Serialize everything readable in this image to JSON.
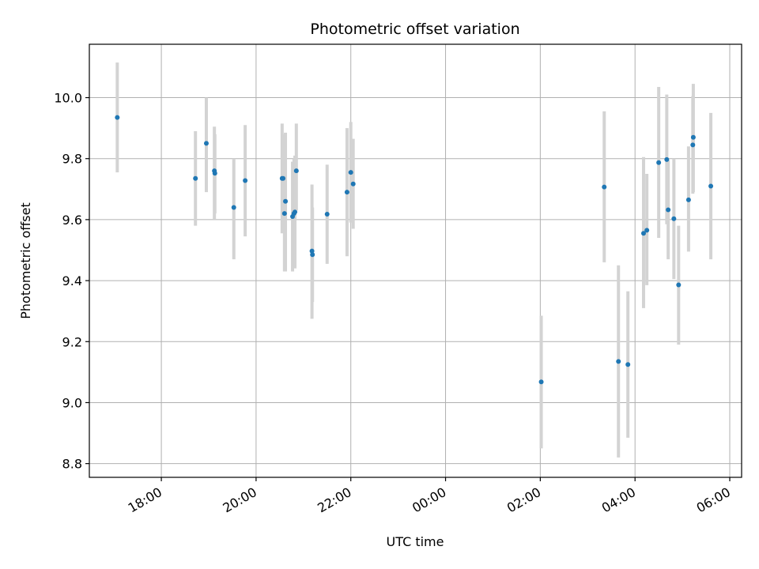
{
  "chart_data": {
    "type": "scatter",
    "title": "Photometric offset variation",
    "xlabel": "UTC time",
    "ylabel": "Photometric offset",
    "x_unit": "hours since 00:00 UTC of first night",
    "xlim": [
      16.48,
      30.25
    ],
    "ylim": [
      8.755,
      10.175
    ],
    "grid": true,
    "colors": {
      "point": "#1f77b4",
      "errorbar": "#d3d3d3",
      "grid": "#b0b0b0"
    },
    "x_ticks": [
      {
        "value": 18,
        "label": "18:00"
      },
      {
        "value": 20,
        "label": "20:00"
      },
      {
        "value": 22,
        "label": "22:00"
      },
      {
        "value": 24,
        "label": "00:00"
      },
      {
        "value": 26,
        "label": "02:00"
      },
      {
        "value": 28,
        "label": "04:00"
      },
      {
        "value": 30,
        "label": "06:00"
      }
    ],
    "y_ticks": [
      {
        "value": 8.8,
        "label": "8.8"
      },
      {
        "value": 9.0,
        "label": "9.0"
      },
      {
        "value": 9.2,
        "label": "9.2"
      },
      {
        "value": 9.4,
        "label": "9.4"
      },
      {
        "value": 9.6,
        "label": "9.6"
      },
      {
        "value": 9.8,
        "label": "9.8"
      },
      {
        "value": 10.0,
        "label": "10.0"
      }
    ],
    "points": [
      {
        "x": 17.07,
        "y": 9.935,
        "lo": 9.755,
        "hi": 10.115
      },
      {
        "x": 18.72,
        "y": 9.735,
        "lo": 9.58,
        "hi": 9.89
      },
      {
        "x": 18.95,
        "y": 9.85,
        "lo": 9.69,
        "hi": 10.0
      },
      {
        "x": 19.12,
        "y": 9.76,
        "lo": 9.6,
        "hi": 9.905
      },
      {
        "x": 19.13,
        "y": 9.752,
        "lo": 9.62,
        "hi": 9.88
      },
      {
        "x": 19.53,
        "y": 9.64,
        "lo": 9.47,
        "hi": 9.8
      },
      {
        "x": 19.77,
        "y": 9.728,
        "lo": 9.545,
        "hi": 9.91
      },
      {
        "x": 20.55,
        "y": 9.735,
        "lo": 9.555,
        "hi": 9.915
      },
      {
        "x": 20.57,
        "y": 9.735,
        "lo": 9.59,
        "hi": 9.88
      },
      {
        "x": 20.6,
        "y": 9.62,
        "lo": 9.43,
        "hi": 9.8
      },
      {
        "x": 20.62,
        "y": 9.66,
        "lo": 9.43,
        "hi": 9.885
      },
      {
        "x": 20.77,
        "y": 9.61,
        "lo": 9.43,
        "hi": 9.79
      },
      {
        "x": 20.8,
        "y": 9.62,
        "lo": 9.45,
        "hi": 9.8
      },
      {
        "x": 20.82,
        "y": 9.625,
        "lo": 9.44,
        "hi": 9.81
      },
      {
        "x": 20.85,
        "y": 9.76,
        "lo": 9.63,
        "hi": 9.915
      },
      {
        "x": 21.18,
        "y": 9.497,
        "lo": 9.275,
        "hi": 9.715
      },
      {
        "x": 21.19,
        "y": 9.485,
        "lo": 9.33,
        "hi": 9.64
      },
      {
        "x": 21.5,
        "y": 9.618,
        "lo": 9.455,
        "hi": 9.78
      },
      {
        "x": 21.92,
        "y": 9.69,
        "lo": 9.48,
        "hi": 9.9
      },
      {
        "x": 22.0,
        "y": 9.755,
        "lo": 9.59,
        "hi": 9.92
      },
      {
        "x": 22.05,
        "y": 9.717,
        "lo": 9.57,
        "hi": 9.865
      },
      {
        "x": 26.02,
        "y": 9.068,
        "lo": 8.85,
        "hi": 9.285
      },
      {
        "x": 27.35,
        "y": 9.707,
        "lo": 9.46,
        "hi": 9.955
      },
      {
        "x": 27.65,
        "y": 9.135,
        "lo": 8.82,
        "hi": 9.45
      },
      {
        "x": 27.85,
        "y": 9.125,
        "lo": 8.885,
        "hi": 9.365
      },
      {
        "x": 28.18,
        "y": 9.555,
        "lo": 9.31,
        "hi": 9.805
      },
      {
        "x": 28.25,
        "y": 9.565,
        "lo": 9.385,
        "hi": 9.75
      },
      {
        "x": 28.5,
        "y": 9.787,
        "lo": 9.54,
        "hi": 10.035
      },
      {
        "x": 28.67,
        "y": 9.797,
        "lo": 9.585,
        "hi": 10.01
      },
      {
        "x": 28.7,
        "y": 9.632,
        "lo": 9.47,
        "hi": 9.795
      },
      {
        "x": 28.82,
        "y": 9.603,
        "lo": 9.405,
        "hi": 9.8
      },
      {
        "x": 28.92,
        "y": 9.386,
        "lo": 9.19,
        "hi": 9.58
      },
      {
        "x": 29.13,
        "y": 9.665,
        "lo": 9.495,
        "hi": 9.84
      },
      {
        "x": 29.22,
        "y": 9.845,
        "lo": 9.685,
        "hi": 10.005
      },
      {
        "x": 29.23,
        "y": 9.87,
        "lo": 9.69,
        "hi": 10.045
      },
      {
        "x": 29.6,
        "y": 9.71,
        "lo": 9.47,
        "hi": 9.95
      }
    ]
  }
}
